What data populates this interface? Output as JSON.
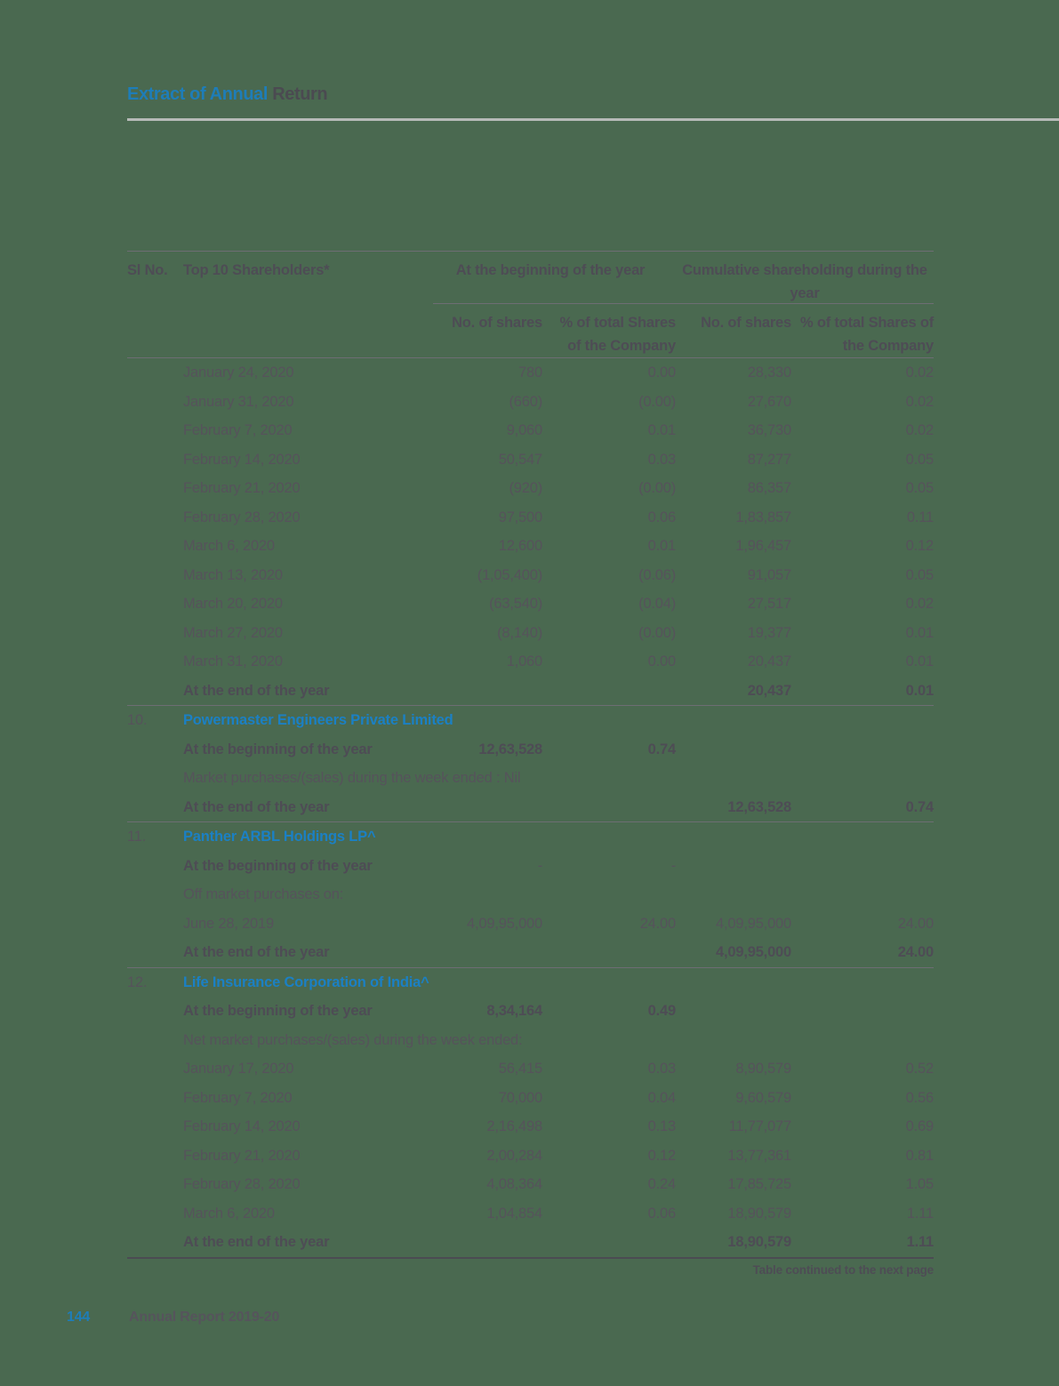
{
  "colors": {
    "background": "#4a6950",
    "accent_blue": "#1b80c4",
    "text_gray": "#56535b",
    "rule_light": "#b6bab7",
    "rule_dark": "#6d6d73"
  },
  "header": {
    "title_accent": "Extract of Annual",
    "title_rest": " Return"
  },
  "table": {
    "col_sl": "Sl No.",
    "col_name": "Top 10 Shareholders*",
    "group1": "At the beginning of the year",
    "group2": "Cumulative shareholding during the year",
    "sub_shares": "No. of shares",
    "sub_pct": "% of total Shares of the Company",
    "rows": [
      {
        "sl": "",
        "label": "January 24, 2020",
        "style": "data",
        "c": [
          "780",
          "0.00",
          "28,330",
          "0.02"
        ]
      },
      {
        "sl": "",
        "label": "January 31, 2020",
        "style": "data",
        "c": [
          "(660)",
          "(0.00)",
          "27,670",
          "0.02"
        ]
      },
      {
        "sl": "",
        "label": "February 7, 2020",
        "style": "data",
        "c": [
          "9,060",
          "0.01",
          "36,730",
          "0.02"
        ]
      },
      {
        "sl": "",
        "label": "February 14, 2020",
        "style": "data",
        "c": [
          "50,547",
          "0.03",
          "87,277",
          "0.05"
        ]
      },
      {
        "sl": "",
        "label": "February 21, 2020",
        "style": "data",
        "c": [
          "(920)",
          "(0.00)",
          "86,357",
          "0.05"
        ]
      },
      {
        "sl": "",
        "label": "February 28, 2020",
        "style": "data",
        "c": [
          "97,500",
          "0.06",
          "1,83,857",
          "0.11"
        ]
      },
      {
        "sl": "",
        "label": "March 6, 2020",
        "style": "data",
        "c": [
          "12,600",
          "0.01",
          "1,96,457",
          "0.12"
        ]
      },
      {
        "sl": "",
        "label": "March 13, 2020",
        "style": "data",
        "c": [
          "(1,05,400)",
          "(0.06)",
          "91,057",
          "0.05"
        ]
      },
      {
        "sl": "",
        "label": "March 20, 2020",
        "style": "data",
        "c": [
          "(63,540)",
          "(0.04)",
          "27,517",
          "0.02"
        ]
      },
      {
        "sl": "",
        "label": "March 27, 2020",
        "style": "data",
        "c": [
          "(8,140)",
          "(0.00)",
          "19,377",
          "0.01"
        ]
      },
      {
        "sl": "",
        "label": "March 31, 2020",
        "style": "data",
        "c": [
          "1,060",
          "0.00",
          "20,437",
          "0.01"
        ]
      },
      {
        "sl": "",
        "label": "At the end of the year",
        "style": "end",
        "sep": "thin",
        "c": [
          "",
          "",
          "20,437",
          "0.01"
        ]
      },
      {
        "sl": "10.",
        "label": "Powermaster Engineers Private Limited",
        "style": "title",
        "c": [
          "",
          "",
          "",
          ""
        ]
      },
      {
        "sl": "",
        "label": "At the beginning of the year",
        "style": "begin",
        "c": [
          "12,63,528",
          "0.74",
          "",
          ""
        ]
      },
      {
        "sl": "",
        "label": "Market purchases/(sales) during the week ended : Nil",
        "style": "text",
        "c": []
      },
      {
        "sl": "",
        "label": "At the end of the year",
        "style": "end",
        "sep": "thin",
        "c": [
          "",
          "",
          "12,63,528",
          "0.74"
        ]
      },
      {
        "sl": "11.",
        "label": "Panther ARBL Holdings LP^",
        "style": "title",
        "c": [
          "",
          "",
          "",
          ""
        ]
      },
      {
        "sl": "",
        "label": "At the beginning of the year",
        "style": "begin-dash",
        "c": [
          "-",
          "-",
          "",
          ""
        ]
      },
      {
        "sl": "",
        "label": "Off market purchases on:",
        "style": "text",
        "c": []
      },
      {
        "sl": "",
        "label": "June 28, 2019",
        "style": "data",
        "c": [
          "4,09,95,000",
          "24.00",
          "4,09,95,000",
          "24.00"
        ]
      },
      {
        "sl": "",
        "label": "At the end of the year",
        "style": "end",
        "sep": "thin",
        "c": [
          "",
          "",
          "4,09,95,000",
          "24.00"
        ]
      },
      {
        "sl": "12.",
        "label": "Life Insurance Corporation of India^",
        "style": "title",
        "c": [
          "",
          "",
          "",
          ""
        ]
      },
      {
        "sl": "",
        "label": "At the beginning of the year",
        "style": "begin",
        "c": [
          "8,34,164",
          "0.49",
          "",
          ""
        ]
      },
      {
        "sl": "",
        "label": "Net market purchases/(sales) during the week ended:",
        "style": "text",
        "c": []
      },
      {
        "sl": "",
        "label": "January 17, 2020",
        "style": "data",
        "c": [
          "56,415",
          "0.03",
          "8,90,579",
          "0.52"
        ]
      },
      {
        "sl": "",
        "label": "February 7, 2020",
        "style": "data",
        "c": [
          "70,000",
          "0.04",
          "9,60,579",
          "0.56"
        ]
      },
      {
        "sl": "",
        "label": "February 14, 2020",
        "style": "data",
        "c": [
          "2,16,498",
          "0.13",
          "11,77,077",
          "0.69"
        ]
      },
      {
        "sl": "",
        "label": "February 21, 2020",
        "style": "data",
        "c": [
          "2,00,284",
          "0.12",
          "13,77,361",
          "0.81"
        ]
      },
      {
        "sl": "",
        "label": "February 28, 2020",
        "style": "data",
        "c": [
          "4,08,364",
          "0.24",
          "17,85,725",
          "1.05"
        ]
      },
      {
        "sl": "",
        "label": "March 6, 2020",
        "style": "data",
        "c": [
          "1,04,854",
          "0.06",
          "18,90,579",
          "1.11"
        ]
      },
      {
        "sl": "",
        "label": "At the end of the year",
        "style": "end",
        "sep": "thick",
        "c": [
          "",
          "",
          "18,90,579",
          "1.11"
        ]
      }
    ]
  },
  "note": "Table continued to the next page",
  "footer": {
    "page_number": "144",
    "report_label": "Annual Report 2019-20"
  }
}
